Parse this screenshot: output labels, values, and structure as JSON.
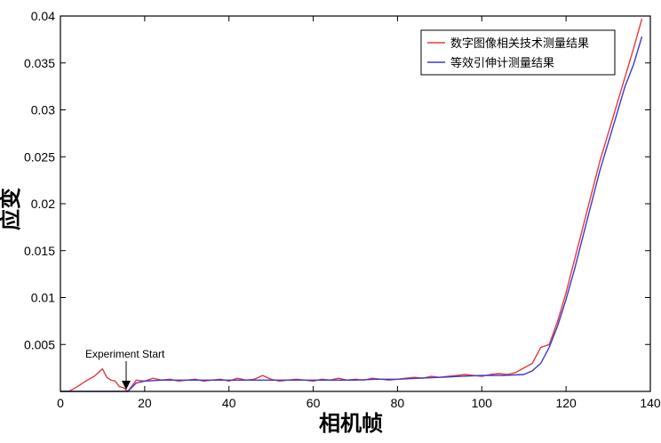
{
  "chart_data": {
    "type": "line",
    "title": "",
    "xlabel": "相机帧",
    "ylabel": "应变",
    "xlim": [
      0,
      140
    ],
    "ylim": [
      0,
      0.04
    ],
    "xticks": [
      0,
      20,
      40,
      60,
      80,
      100,
      120,
      140
    ],
    "yticks": [
      0.005,
      0.01,
      0.015,
      0.02,
      0.025,
      0.03,
      0.035,
      0.04
    ],
    "grid": false,
    "legend_position": "top-right",
    "annotation": {
      "text": "Experiment Start",
      "x": 16,
      "y": 0
    },
    "series": [
      {
        "name": "数字图像相关技术测量结果",
        "color": "#e8383d",
        "x": [
          0,
          2,
          4,
          6,
          8,
          10,
          11,
          12,
          13,
          14,
          15,
          16,
          18,
          20,
          22,
          24,
          26,
          28,
          30,
          32,
          34,
          36,
          38,
          40,
          42,
          44,
          46,
          48,
          50,
          52,
          54,
          56,
          58,
          60,
          62,
          64,
          66,
          68,
          70,
          72,
          74,
          76,
          78,
          80,
          82,
          84,
          86,
          88,
          90,
          92,
          94,
          96,
          98,
          100,
          102,
          104,
          106,
          108,
          110,
          112,
          114,
          116,
          118,
          120,
          122,
          124,
          126,
          128,
          130,
          132,
          134,
          136,
          138
        ],
        "values": [
          0.0,
          0.0,
          0.0005,
          0.0011,
          0.0016,
          0.0024,
          0.0015,
          0.0012,
          0.0011,
          0.0005,
          0.0004,
          0.0,
          0.0012,
          0.0011,
          0.0014,
          0.0012,
          0.0013,
          0.0011,
          0.0012,
          0.0013,
          0.0011,
          0.0012,
          0.0013,
          0.0011,
          0.0014,
          0.0012,
          0.0013,
          0.0017,
          0.0013,
          0.0011,
          0.0012,
          0.0013,
          0.0012,
          0.0011,
          0.0013,
          0.0012,
          0.0014,
          0.0012,
          0.0013,
          0.0012,
          0.0014,
          0.0013,
          0.0012,
          0.0013,
          0.0014,
          0.0015,
          0.0014,
          0.0016,
          0.0015,
          0.0016,
          0.0017,
          0.0018,
          0.0017,
          0.0016,
          0.0018,
          0.0019,
          0.0018,
          0.002,
          0.0025,
          0.003,
          0.0047,
          0.005,
          0.0075,
          0.0105,
          0.014,
          0.0175,
          0.021,
          0.0245,
          0.0275,
          0.0305,
          0.0335,
          0.0365,
          0.0397
        ]
      },
      {
        "name": "等效引伸计测量结果",
        "color": "#3a3aca",
        "x": [
          0,
          2,
          4,
          6,
          8,
          10,
          12,
          14,
          16,
          18,
          20,
          24,
          28,
          32,
          36,
          40,
          45,
          50,
          55,
          60,
          65,
          70,
          75,
          80,
          85,
          90,
          95,
          100,
          105,
          110,
          112,
          114,
          116,
          118,
          120,
          122,
          124,
          126,
          128,
          130,
          132,
          134,
          136,
          138
        ],
        "values": [
          0.0,
          0.0,
          0.0,
          0.0,
          0.0,
          0.0,
          0.0,
          0.0,
          0.0,
          0.0009,
          0.0011,
          0.0012,
          0.0012,
          0.0012,
          0.0012,
          0.0012,
          0.0012,
          0.0012,
          0.0012,
          0.0012,
          0.0012,
          0.0012,
          0.0013,
          0.0013,
          0.0014,
          0.0015,
          0.0016,
          0.0017,
          0.0017,
          0.0018,
          0.0022,
          0.003,
          0.0047,
          0.007,
          0.0098,
          0.013,
          0.0165,
          0.02,
          0.0235,
          0.0265,
          0.0295,
          0.0325,
          0.0348,
          0.0378
        ]
      }
    ]
  }
}
